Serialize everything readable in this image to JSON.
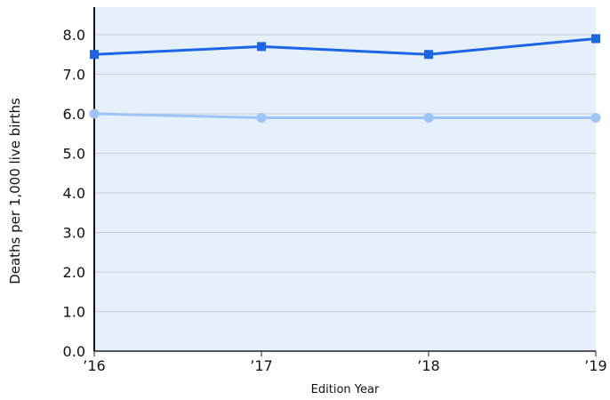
{
  "chart_data": {
    "type": "line",
    "categories": [
      "’16",
      "’17",
      "’18",
      "’19"
    ],
    "series": [
      {
        "values": [
          7.5,
          7.7,
          7.5,
          7.9
        ],
        "marker": "square",
        "color": "#1a66e6"
      },
      {
        "values": [
          6.0,
          5.9,
          5.9,
          5.9
        ],
        "marker": "circle",
        "color": "#9ec3f7"
      }
    ],
    "xlabel": "Edition Year",
    "ylabel": "Deaths per 1,000 live births",
    "ylim": [
      0,
      8
    ],
    "yticks": [
      "0.0",
      "1.0",
      "2.0",
      "3.0",
      "4.0",
      "5.0",
      "6.0",
      "7.0",
      "8.0"
    ],
    "grid": true,
    "plot_background": "#e6effc"
  }
}
